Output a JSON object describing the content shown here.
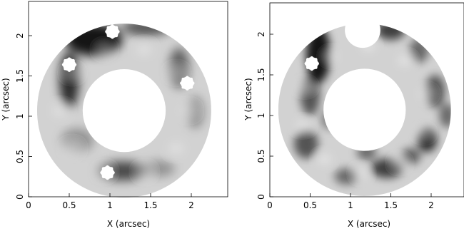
{
  "panels": [
    {
      "id": "left",
      "xlabel": "X (arcsec)",
      "ylabel": "Y (arcsec)",
      "xticks": [
        "0",
        "0.5",
        "1",
        "1.5",
        "2"
      ],
      "yticks": [
        "0",
        "0.5",
        "1",
        "1.5",
        "2"
      ],
      "annulus": {
        "center_x": 1.175,
        "center_y": 1.07,
        "inner_r": 0.51,
        "outer_r": 1.07
      },
      "stars": [
        [
          1.03,
          2.05
        ],
        [
          0.5,
          1.64
        ],
        [
          1.95,
          1.41
        ],
        [
          0.97,
          0.3
        ]
      ],
      "dark_features": [
        [
          0.8,
          1.95,
          0.35,
          0.2,
          0.9
        ],
        [
          0.5,
          1.45,
          0.12,
          0.35,
          0.8
        ],
        [
          1.45,
          2.1,
          0.3,
          0.1,
          0.6
        ],
        [
          1.85,
          1.6,
          0.12,
          0.25,
          0.55
        ],
        [
          2.05,
          1.05,
          0.1,
          0.2,
          0.35
        ],
        [
          1.15,
          0.32,
          0.3,
          0.12,
          0.65
        ],
        [
          0.6,
          0.7,
          0.2,
          0.15,
          0.3
        ],
        [
          1.6,
          0.35,
          0.2,
          0.1,
          0.3
        ]
      ]
    },
    {
      "id": "right",
      "xlabel": "X (arcsec)",
      "ylabel": "Y (arcsec)",
      "xticks": [
        "0",
        "0.5",
        "1",
        "1.5",
        "2"
      ],
      "yticks": [
        "0",
        "0.5",
        "1",
        "1.5",
        "2"
      ],
      "annulus": {
        "center_x": 1.175,
        "center_y": 1.07,
        "inner_r": 0.51,
        "outer_r": 1.07
      },
      "stars": [
        [
          0.52,
          1.64
        ]
      ],
      "gap": {
        "x": 1.15,
        "y": 2.05,
        "r": 0.22
      },
      "dark_features": [
        [
          0.6,
          1.75,
          0.15,
          0.35,
          0.9
        ],
        [
          0.5,
          1.25,
          0.12,
          0.25,
          0.6
        ],
        [
          1.5,
          2.05,
          0.18,
          0.12,
          0.7
        ],
        [
          1.85,
          1.8,
          0.12,
          0.15,
          0.5
        ],
        [
          2.05,
          1.3,
          0.12,
          0.2,
          0.6
        ],
        [
          1.95,
          0.7,
          0.12,
          0.15,
          0.8
        ],
        [
          2.2,
          1.0,
          0.1,
          0.15,
          0.5
        ],
        [
          1.45,
          0.35,
          0.2,
          0.12,
          0.7
        ],
        [
          0.95,
          0.25,
          0.15,
          0.1,
          0.5
        ],
        [
          0.45,
          0.65,
          0.15,
          0.18,
          0.6
        ],
        [
          0.75,
          0.95,
          0.12,
          0.12,
          0.4
        ],
        [
          1.2,
          0.55,
          0.12,
          0.1,
          0.5
        ],
        [
          1.75,
          0.5,
          0.12,
          0.1,
          0.55
        ]
      ]
    }
  ],
  "colors": {
    "ring_base": "#d2d2d2",
    "background": "#ffffff",
    "axis": "#000000"
  }
}
